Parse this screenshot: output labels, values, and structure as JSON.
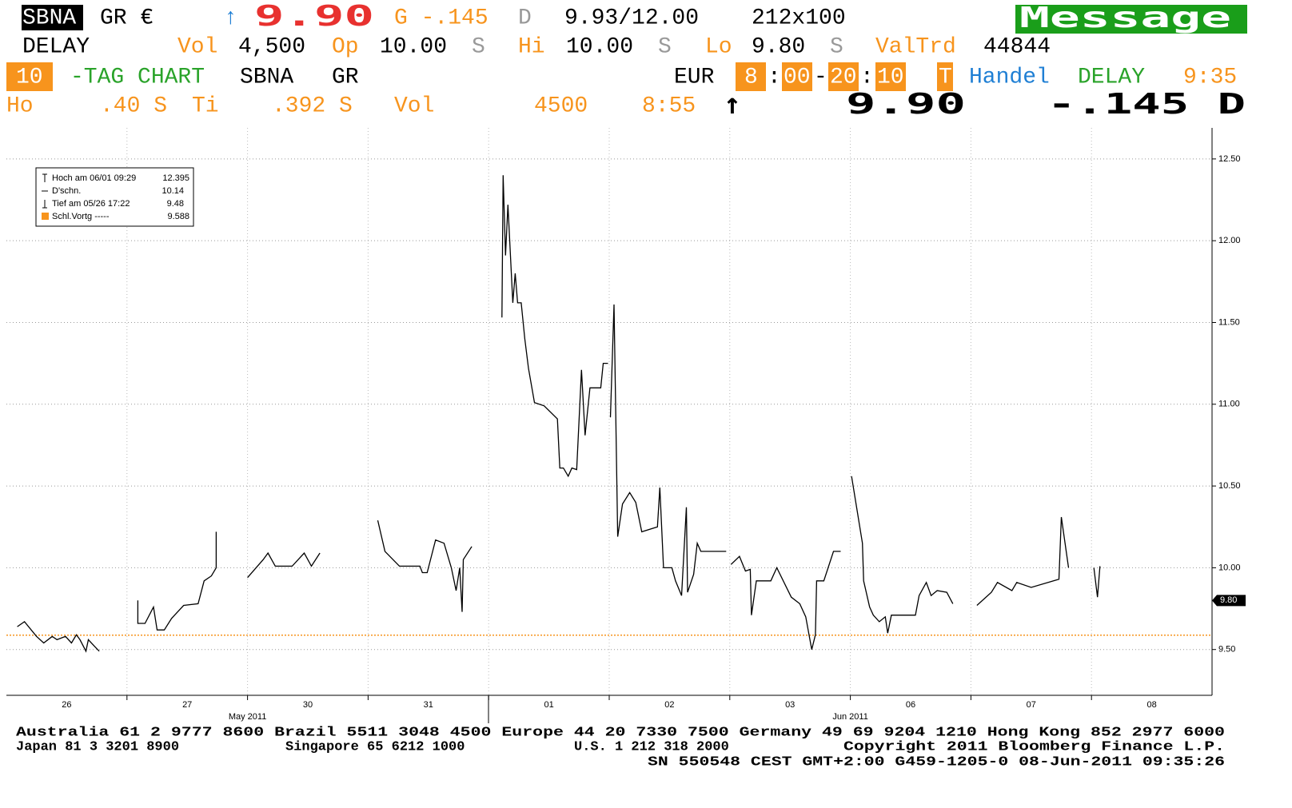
{
  "header": {
    "row1": [
      "SBNA",
      "GR €",
      "↑",
      "9.90",
      "G -.145",
      "D",
      "9.93/12.00",
      "212x100",
      "Message"
    ],
    "row2": [
      "DELAY",
      "Vol",
      "4,500",
      "Op",
      "10.00",
      "S",
      "Hi",
      "10.00",
      "S",
      "Lo",
      "9.80",
      "S",
      "ValTrd",
      "44844"
    ],
    "row3": [
      "10",
      "-TAG CHART",
      "SBNA",
      "GR",
      "EUR",
      "8",
      ":",
      "00",
      "-",
      "20",
      ":",
      "10",
      "T",
      "Handel",
      "DELAY",
      "9:35"
    ],
    "row4": [
      "Ho",
      ".40 S",
      "Ti",
      ".392 S",
      "Vol",
      "4500",
      "8:55",
      "↑",
      "9.90",
      "-.145 D"
    ]
  },
  "footer": {
    "row1": "Australia 61 2 9777 8600 Brazil 5511 3048 4500 Europe 44 20 7330 7500 Germany 49 69 9204 1210 Hong Kong 852 2977 6000",
    "row2": [
      "Japan 81 3 3201 8900",
      "Singapore 65 6212 1000",
      "U.S. 1 212 318 2000",
      "Copyright 2011 Bloomberg Finance L.P."
    ],
    "row3": "SN 550548 CEST GMT+2:00 G459-1205-0 08-Jun-2011 09:35:26"
  },
  "chart_data": {
    "type": "line",
    "color": "#000000",
    "legend_items": [
      [
        "Hoch am 06/01 09:29",
        "12.395"
      ],
      [
        "D'schn.",
        "10.14"
      ],
      [
        "Tief am 05/26 17:22",
        "9.48"
      ],
      [
        "Schl.Vortg -----",
        "9.588"
      ]
    ],
    "reference_line": {
      "value": 9.588,
      "color": "#f7941d"
    },
    "last_price": {
      "value": 9.8,
      "label": "9.80"
    },
    "xlim": [
      0,
      10
    ],
    "ylim": [
      9.22,
      12.69
    ],
    "xticks": [
      {
        "value": 0.5,
        "label": "26"
      },
      {
        "value": 1.5,
        "label": "27"
      },
      {
        "value": 2.5,
        "label": "30"
      },
      {
        "value": 3.5,
        "label": "31"
      },
      {
        "value": 4.5,
        "label": "01"
      },
      {
        "value": 5.5,
        "label": "02"
      },
      {
        "value": 6.5,
        "label": "03"
      },
      {
        "value": 7.5,
        "label": "06"
      },
      {
        "value": 8.5,
        "label": "07"
      },
      {
        "value": 9.5,
        "label": "08"
      }
    ],
    "month_labels": [
      {
        "value": 2,
        "label": "May 2011"
      },
      {
        "value": 7,
        "label": "Jun 2011"
      }
    ],
    "yticks": [
      {
        "value": 9.5,
        "label": "9.50"
      },
      {
        "value": 10,
        "label": "10.00"
      },
      {
        "value": 10.5,
        "label": "10.50"
      },
      {
        "value": 11,
        "label": "11.00"
      },
      {
        "value": 11.5,
        "label": "11.50"
      },
      {
        "value": 12,
        "label": "12.00"
      },
      {
        "value": 12.5,
        "label": "12.50"
      }
    ],
    "grid": true,
    "x": [
      0.09,
      0.15,
      0.25,
      0.31,
      0.38,
      0.42,
      0.49,
      0.54,
      0.58,
      0.61,
      0.66,
      0.68,
      0.73,
      0.77,
      null,
      1.09,
      1.09,
      1.15,
      1.22,
      1.25,
      1.31,
      1.37,
      1.47,
      1.59,
      1.64,
      1.7,
      1.74,
      1.74,
      null,
      2.0,
      2.13,
      2.17,
      2.23,
      2.37,
      2.47,
      2.53,
      2.6,
      null,
      3.08,
      3.14,
      3.26,
      3.43,
      3.45,
      3.49,
      3.56,
      3.63,
      3.69,
      3.73,
      3.76,
      3.78,
      3.79,
      3.86,
      null,
      4.11,
      4.12,
      4.14,
      4.16,
      4.2,
      4.22,
      4.24,
      4.27,
      4.3,
      4.33,
      4.38,
      4.46,
      4.57,
      4.59,
      4.62,
      4.66,
      4.69,
      4.73,
      4.77,
      4.8,
      4.84,
      4.93,
      4.95,
      4.99,
      null,
      5.01,
      5.04,
      5.07,
      5.11,
      5.17,
      5.22,
      5.27,
      5.4,
      5.42,
      5.45,
      5.52,
      5.55,
      5.6,
      5.64,
      5.65,
      5.7,
      5.73,
      5.76,
      5.97,
      null,
      6.01,
      6.08,
      6.13,
      6.17,
      6.18,
      6.22,
      6.34,
      6.39,
      6.51,
      6.58,
      6.63,
      6.68,
      6.71,
      6.72,
      6.78,
      6.86,
      6.92,
      null,
      7.01,
      7.1,
      7.11,
      7.16,
      7.19,
      7.24,
      7.29,
      7.31,
      7.34,
      7.54,
      7.57,
      7.63,
      7.67,
      7.72,
      7.8,
      7.85,
      null,
      8.05,
      8.17,
      8.22,
      8.34,
      8.38,
      8.5,
      8.73,
      8.75,
      8.81,
      null,
      9.02,
      9.05,
      9.07
    ],
    "values": [
      9.64,
      9.67,
      9.58,
      9.54,
      9.58,
      9.56,
      9.58,
      9.54,
      9.59,
      9.56,
      9.49,
      9.56,
      9.52,
      9.49,
      null,
      9.8,
      9.66,
      9.66,
      9.76,
      9.62,
      9.62,
      9.69,
      9.77,
      9.78,
      9.92,
      9.95,
      10.0,
      10.22,
      null,
      9.94,
      10.05,
      10.09,
      10.01,
      10.01,
      10.09,
      10.01,
      10.09,
      null,
      10.29,
      10.1,
      10.01,
      10.01,
      9.97,
      9.97,
      10.17,
      10.15,
      10.0,
      9.86,
      10.0,
      9.73,
      10.05,
      10.13,
      null,
      11.53,
      12.4,
      11.91,
      12.22,
      11.62,
      11.8,
      11.62,
      11.62,
      11.4,
      11.22,
      11.01,
      10.99,
      10.91,
      10.61,
      10.61,
      10.56,
      10.61,
      10.6,
      11.21,
      10.81,
      11.1,
      11.1,
      11.25,
      11.25,
      null,
      10.92,
      11.61,
      10.19,
      10.39,
      10.46,
      10.4,
      10.22,
      10.25,
      10.49,
      10.0,
      10.0,
      9.92,
      9.83,
      10.37,
      9.85,
      9.96,
      10.15,
      10.1,
      10.1,
      null,
      10.02,
      10.07,
      9.98,
      9.99,
      9.71,
      9.92,
      9.92,
      10.0,
      9.82,
      9.78,
      9.7,
      9.5,
      9.59,
      9.92,
      9.92,
      10.1,
      10.1,
      null,
      10.56,
      10.15,
      9.92,
      9.76,
      9.71,
      9.67,
      9.7,
      9.6,
      9.71,
      9.71,
      9.83,
      9.91,
      9.83,
      9.86,
      9.85,
      9.78,
      null,
      9.77,
      9.85,
      9.91,
      9.86,
      9.91,
      9.88,
      9.93,
      10.31,
      10.0,
      null,
      10.0,
      9.82,
      10.01
    ]
  }
}
